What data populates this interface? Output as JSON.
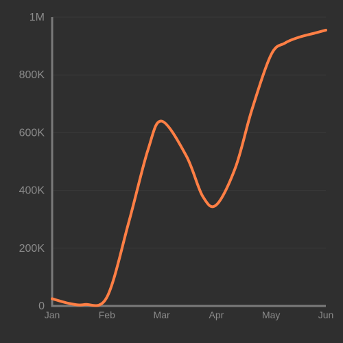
{
  "chart_data": {
    "type": "line",
    "categories": [
      "Jan",
      "Feb",
      "Mar",
      "Apr",
      "May",
      "Jun"
    ],
    "y_tick_values": [
      0,
      200000,
      400000,
      600000,
      800000,
      1000000
    ],
    "y_tick_labels": [
      "0",
      "200K",
      "400K",
      "600K",
      "800K",
      "1M"
    ],
    "ylim": [
      0,
      1000000
    ],
    "grid": true,
    "series": [
      {
        "x": [
          "Jan",
          "Jan",
          "Jan",
          "Feb",
          "Feb",
          "Feb",
          "Mar",
          "Mar",
          "Mar",
          "Apr",
          "Apr",
          "Apr",
          "May",
          "May",
          "May",
          "Jun",
          "Jun"
        ],
        "x_pos": [
          0,
          0.33,
          0.6,
          1.0,
          1.4,
          1.75,
          2.0,
          2.45,
          2.75,
          3.0,
          3.35,
          3.65,
          4.0,
          4.25,
          4.5,
          4.8,
          5.0
        ],
        "values": [
          25000,
          8000,
          5000,
          30000,
          290000,
          540000,
          640000,
          520000,
          380000,
          350000,
          480000,
          680000,
          870000,
          910000,
          930000,
          945000,
          955000
        ]
      }
    ],
    "colors": {
      "background": "#2f2f2f",
      "line": "#ff7f45",
      "axis": "#7a7a7a",
      "grid": "#3a3a3a",
      "label": "#8a8a8a"
    }
  }
}
